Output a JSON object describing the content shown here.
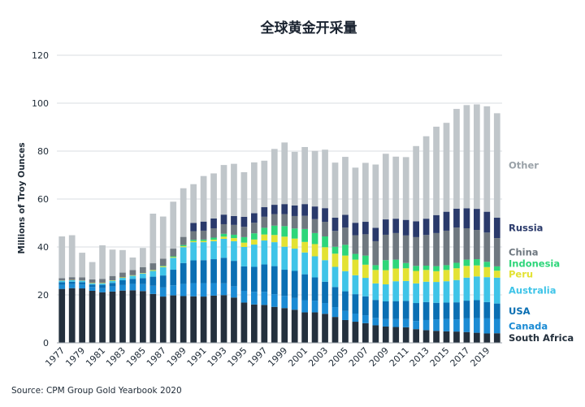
{
  "chart_data": {
    "type": "bar",
    "stacked": true,
    "title": "全球黄金开采量",
    "ylabel": "Millions of Troy Ounces",
    "xlabel": "",
    "source": "Source: CPM Group Gold Yearbook 2020",
    "ylim": [
      0,
      120
    ],
    "yticks": [
      0,
      20,
      40,
      60,
      80,
      100,
      120
    ],
    "grid": "horizontal",
    "legend": "right, labels aligned beside the last bar",
    "categories": [
      "1977",
      "1978",
      "1979",
      "1980",
      "1981",
      "1982",
      "1983",
      "1984",
      "1985",
      "1986",
      "1987",
      "1988",
      "1989",
      "1990",
      "1991",
      "1992",
      "1993",
      "1994",
      "1995",
      "1996",
      "1997",
      "1998",
      "1999",
      "2000",
      "2001",
      "2002",
      "2003",
      "2004",
      "2005",
      "2006",
      "2007",
      "2008",
      "2009",
      "2010",
      "2011",
      "2012",
      "2013",
      "2014",
      "2015",
      "2016",
      "2017",
      "2018",
      "2019",
      "2020"
    ],
    "xticklabels": [
      "1977",
      "1979",
      "1981",
      "1983",
      "1985",
      "1987",
      "1989",
      "1991",
      "1993",
      "1995",
      "1997",
      "1999",
      "2001",
      "2003",
      "2005",
      "2007",
      "2009",
      "2011",
      "2013",
      "2015",
      "2017",
      "2019"
    ],
    "series": [
      {
        "name": "South Africa",
        "color": "#24303d",
        "values": [
          22.5,
          22.8,
          22.7,
          21.7,
          21.1,
          21.4,
          21.8,
          21.9,
          21.6,
          20.4,
          19.3,
          19.8,
          19.5,
          19.4,
          19.3,
          19.7,
          19.9,
          18.9,
          16.8,
          16.0,
          15.8,
          15.0,
          14.5,
          13.8,
          12.7,
          12.7,
          12.1,
          10.8,
          9.5,
          8.8,
          8.2,
          7.3,
          6.8,
          6.6,
          6.5,
          5.7,
          5.3,
          5.0,
          4.8,
          4.7,
          4.5,
          4.2,
          3.9,
          4.0
        ]
      },
      {
        "name": "Canada",
        "color": "#1b8bd4",
        "values": [
          1.7,
          1.7,
          1.6,
          1.6,
          1.7,
          2.1,
          2.3,
          2.7,
          2.9,
          3.4,
          3.8,
          4.2,
          5.1,
          5.5,
          5.6,
          5.2,
          4.9,
          4.7,
          4.9,
          5.3,
          5.5,
          5.3,
          5.1,
          4.9,
          5.1,
          4.9,
          4.5,
          4.1,
          3.8,
          3.4,
          3.3,
          3.1,
          3.1,
          3.3,
          3.4,
          3.4,
          4.2,
          4.8,
          5.1,
          5.1,
          5.7,
          6.1,
          6.3,
          6.0
        ]
      },
      {
        "name": "USA",
        "color": "#0b6fb3",
        "values": [
          1.1,
          1.0,
          1.0,
          1.0,
          1.4,
          1.5,
          2.0,
          2.1,
          2.5,
          3.8,
          5.0,
          6.5,
          8.7,
          9.5,
          9.6,
          10.0,
          10.7,
          10.6,
          10.2,
          10.4,
          11.4,
          11.7,
          10.9,
          11.3,
          10.8,
          9.7,
          8.9,
          8.4,
          8.2,
          8.1,
          7.9,
          7.5,
          7.4,
          7.5,
          7.6,
          7.5,
          7.5,
          6.9,
          6.9,
          7.1,
          7.4,
          7.5,
          6.8,
          6.4
        ]
      },
      {
        "name": "Australia",
        "color": "#3fc4e8",
        "values": [
          0.6,
          0.6,
          0.6,
          0.5,
          0.6,
          0.9,
          1.0,
          1.3,
          1.9,
          2.4,
          3.5,
          5.0,
          6.6,
          7.6,
          7.5,
          7.5,
          7.9,
          8.2,
          8.1,
          9.3,
          10.0,
          10.0,
          9.6,
          9.3,
          9.1,
          8.8,
          9.0,
          8.4,
          8.4,
          7.9,
          7.7,
          6.9,
          7.1,
          8.3,
          8.3,
          8.2,
          8.5,
          8.7,
          8.9,
          9.3,
          9.6,
          9.9,
          10.4,
          10.8
        ]
      },
      {
        "name": "Peru",
        "color": "#e3e233",
        "values": [
          0.1,
          0.1,
          0.1,
          0.2,
          0.2,
          0.2,
          0.2,
          0.2,
          0.2,
          0.3,
          0.3,
          0.3,
          0.4,
          0.4,
          0.5,
          0.6,
          0.9,
          1.3,
          1.8,
          2.1,
          2.5,
          3.0,
          4.2,
          4.2,
          4.4,
          5.1,
          5.4,
          5.5,
          6.5,
          6.5,
          5.5,
          5.6,
          5.9,
          5.3,
          5.3,
          5.2,
          4.9,
          4.5,
          4.7,
          4.9,
          4.9,
          4.6,
          4.2,
          2.9
        ]
      },
      {
        "name": "Indonesia",
        "color": "#2ed67a",
        "values": [
          0.0,
          0.0,
          0.0,
          0.0,
          0.0,
          0.0,
          0.0,
          0.0,
          0.0,
          0.1,
          0.2,
          0.3,
          0.5,
          0.6,
          0.6,
          0.9,
          1.2,
          1.4,
          2.3,
          2.6,
          2.8,
          3.9,
          4.4,
          4.2,
          5.4,
          4.6,
          4.5,
          2.9,
          4.5,
          2.4,
          3.8,
          2.0,
          4.2,
          3.7,
          2.2,
          2.1,
          1.8,
          2.1,
          2.0,
          2.3,
          2.6,
          2.6,
          2.2,
          1.8
        ]
      },
      {
        "name": "China",
        "color": "#6f7880",
        "values": [
          1.0,
          1.2,
          1.3,
          1.5,
          1.7,
          1.8,
          2.0,
          2.2,
          2.5,
          2.8,
          3.0,
          3.2,
          3.4,
          3.6,
          3.7,
          3.9,
          4.0,
          4.1,
          4.3,
          4.4,
          4.6,
          4.8,
          5.0,
          5.2,
          5.5,
          5.8,
          6.1,
          6.6,
          7.2,
          7.8,
          8.9,
          10.0,
          10.6,
          11.1,
          11.5,
          12.0,
          12.8,
          13.8,
          14.4,
          14.7,
          13.1,
          12.2,
          12.2,
          11.8
        ]
      },
      {
        "name": "Russia",
        "color": "#2a3a6b",
        "values": [
          0.0,
          0.0,
          0.0,
          0.0,
          0.0,
          0.0,
          0.0,
          0.0,
          0.0,
          0.0,
          0.0,
          0.0,
          0.0,
          3.4,
          3.8,
          4.1,
          4.0,
          3.7,
          4.2,
          4.0,
          4.0,
          3.9,
          4.2,
          4.4,
          4.9,
          5.3,
          5.7,
          5.5,
          5.3,
          5.2,
          5.2,
          5.6,
          6.4,
          6.0,
          6.5,
          6.6,
          6.8,
          7.5,
          7.9,
          7.9,
          8.3,
          8.8,
          8.7,
          8.5
        ]
      },
      {
        "name": "Other",
        "color": "#c0c6ca",
        "values": [
          17.4,
          17.5,
          10.3,
          7.2,
          14.0,
          11.0,
          9.4,
          5.2,
          8.0,
          20.7,
          17.6,
          19.6,
          20.3,
          16.2,
          19.0,
          18.8,
          20.7,
          21.8,
          18.6,
          21.2,
          19.4,
          23.3,
          25.7,
          22.4,
          23.8,
          23.2,
          24.4,
          23.0,
          24.2,
          23.0,
          24.6,
          26.4,
          27.4,
          25.9,
          26.2,
          31.4,
          34.4,
          36.9,
          37.1,
          41.6,
          43.1,
          43.6,
          44.0,
          43.6
        ]
      }
    ]
  }
}
